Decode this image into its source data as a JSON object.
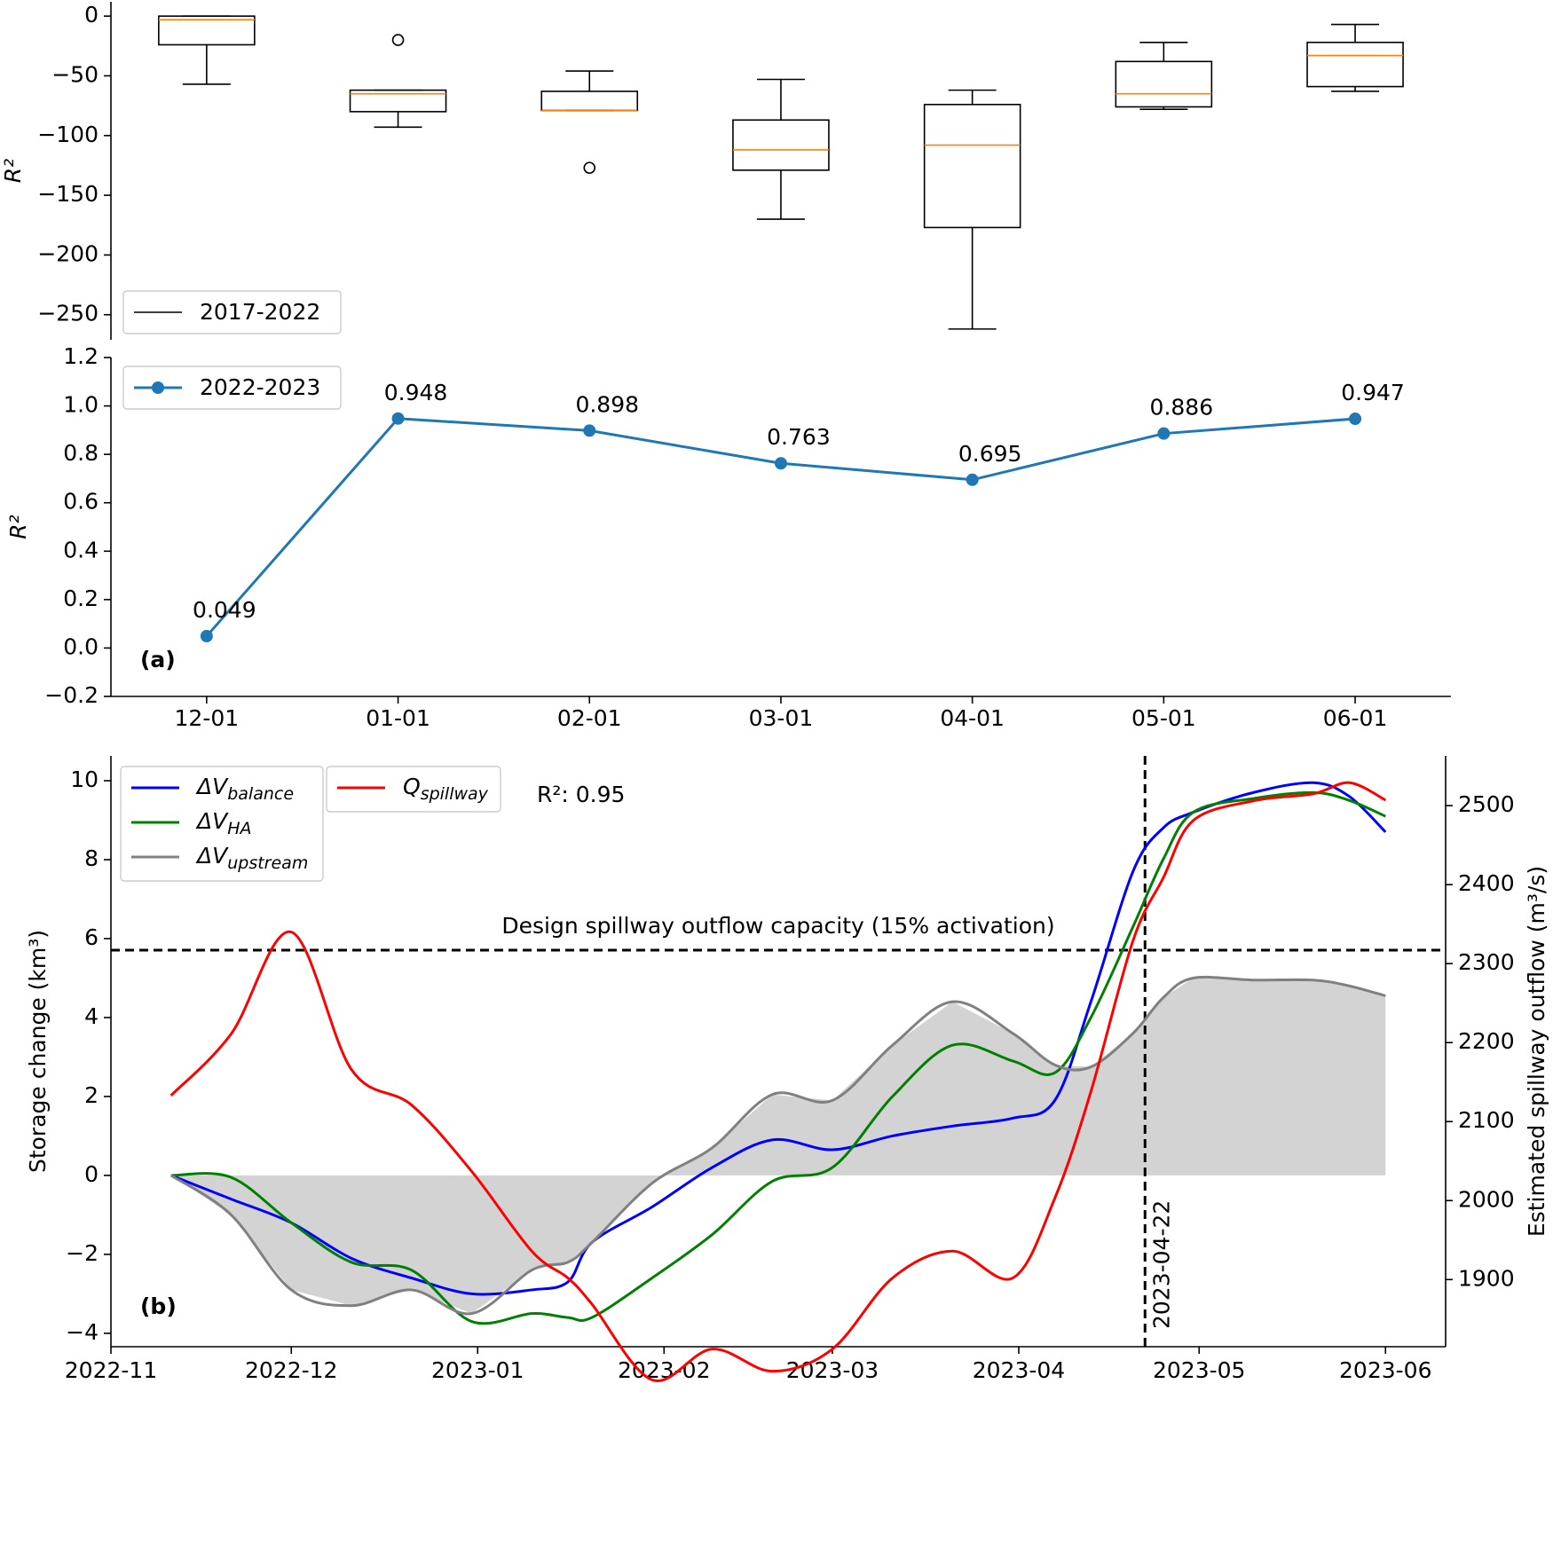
{
  "chart_data": [
    {
      "type": "box",
      "ylabel": "R²",
      "legend_label": "2017-2022",
      "legend": "lower left",
      "color": "#000000",
      "median_color": "#ff7f0e",
      "ylim": [
        -271,
        12
      ],
      "yticks": [
        0,
        {
          "value": -50,
          "label": "−50"
        },
        {
          "value": -100,
          "label": "−100"
        },
        {
          "value": -150,
          "label": "−150"
        },
        {
          "value": -200,
          "label": "−200"
        },
        {
          "value": -250,
          "label": "−250"
        }
      ],
      "boxes": [
        {
          "low": -57,
          "q1": -24,
          "median": -3,
          "q3": 0,
          "high": 0,
          "outliers": []
        },
        {
          "low": -93,
          "q1": -80,
          "median": -65,
          "q3": -62,
          "high": -62,
          "outliers": [
            -20
          ]
        },
        {
          "low": -79,
          "q1": -79,
          "median": -79,
          "q3": -63,
          "high": -46,
          "outliers": [
            -127
          ]
        },
        {
          "low": -170,
          "q1": -129,
          "median": -112,
          "q3": -87,
          "high": -53,
          "outliers": []
        },
        {
          "low": -262,
          "q1": -177,
          "median": -108,
          "q3": -74,
          "high": -62,
          "outliers": []
        },
        {
          "low": -78,
          "q1": -76,
          "median": -65,
          "q3": -38,
          "high": -22,
          "outliers": []
        },
        {
          "low": -63,
          "q1": -59,
          "median": -33,
          "q3": -22,
          "high": -7,
          "outliers": []
        }
      ]
    },
    {
      "type": "line",
      "ylabel": "R²",
      "annotation": "(a)",
      "legend": "upper left",
      "categories": [
        "12-01",
        "01-01",
        "02-01",
        "03-01",
        "04-01",
        "05-01",
        "06-01"
      ],
      "series": [
        {
          "name": "2022-2023",
          "color": "#1f77b4",
          "values": [
            0.049,
            0.948,
            0.898,
            0.763,
            0.695,
            0.886,
            0.947
          ]
        }
      ],
      "ylim": [
        -0.2,
        1.2
      ],
      "yticks": [
        {
          "value": -0.2,
          "label": "−0.2"
        },
        {
          "value": 0,
          "label": "0.0"
        },
        0.2,
        0.4,
        0.6,
        0.8,
        {
          "value": 1,
          "label": "1.0"
        },
        1.2
      ]
    },
    {
      "type": "timeseries",
      "ylabel": "Storage change (km³)",
      "y2label": "Estimated spillway outflow (m³/s)",
      "annotation": "(b)",
      "r2_text": "R²: 0.95",
      "legend": "upper left",
      "x": [
        "2022-11-11",
        "2022-11-21",
        "2022-12-01",
        "2022-12-11",
        "2022-12-21",
        "2022-12-31",
        "2023-01-10",
        "2023-01-16",
        "2023-01-20",
        "2023-01-30",
        "2023-02-09",
        "2023-02-19",
        "2023-03-01",
        "2023-03-11",
        "2023-03-21",
        "2023-03-31",
        "2023-04-07",
        "2023-04-13",
        "2023-04-20",
        "2023-04-25",
        "2023-04-30",
        "2023-05-10",
        "2023-05-20",
        "2023-05-26",
        "2023-06-01"
      ],
      "series": [
        {
          "name": "ΔVbalance",
          "color": "#0000ff",
          "axis": "y",
          "values": [
            0,
            -0.6,
            -1.2,
            -2.1,
            -2.6,
            -3.0,
            -2.9,
            -2.7,
            -1.7,
            -0.8,
            0.2,
            0.9,
            0.65,
            1.0,
            1.25,
            1.45,
            1.9,
            4.4,
            7.7,
            8.8,
            9.2,
            9.7,
            9.95,
            9.6,
            8.7
          ]
        },
        {
          "name": "ΔVHA",
          "color": "#008000",
          "axis": "y",
          "values": [
            0,
            -0.05,
            -1.2,
            -2.2,
            -2.4,
            -3.7,
            -3.5,
            -3.6,
            -3.6,
            -2.6,
            -1.5,
            -0.15,
            0.2,
            2.0,
            3.3,
            2.9,
            2.6,
            4.0,
            6.3,
            8.0,
            9.2,
            9.55,
            9.7,
            9.5,
            9.1
          ]
        },
        {
          "name": "ΔVupstream",
          "color": "#808080",
          "fill": "#d3d3d3",
          "axis": "y",
          "values": [
            0,
            -1.0,
            -2.9,
            -3.3,
            -2.9,
            -3.5,
            -2.4,
            -2.2,
            -1.7,
            -0.2,
            0.7,
            2.05,
            1.9,
            3.3,
            4.4,
            3.6,
            2.8,
            2.75,
            3.6,
            4.5,
            5.0,
            4.95,
            4.95,
            4.8,
            4.55
          ]
        },
        {
          "name": "Qspillway",
          "color": "#ff0000",
          "axis": "y2",
          "values": [
            2133,
            2211,
            2340,
            2166,
            2121,
            2037,
            1936,
            1902,
            1869,
            1773,
            1812,
            1784,
            1812,
            1902,
            1936,
            1902,
            2003,
            2138,
            2329,
            2408,
            2481,
            2506,
            2515,
            2529,
            2507
          ]
        }
      ],
      "hline": {
        "value": 2317,
        "axis": "y2",
        "label": "Design spillway outflow capacity (15% activation)"
      },
      "vline": {
        "x": "2023-04-22",
        "label": "2023-04-22"
      },
      "xlim": [
        "2022-11-01",
        "2023-06-11"
      ],
      "xticks": [
        "2022-11",
        "2022-12",
        "2023-01",
        "2023-02",
        "2023-03",
        "2023-04",
        "2023-05",
        "2023-06"
      ],
      "ylim": [
        -4.34,
        10.63
      ],
      "yticks": [
        {
          "value": -4,
          "label": "−4"
        },
        {
          "value": -2,
          "label": "−2"
        },
        0,
        2,
        4,
        6,
        8,
        10
      ],
      "y2lim": [
        1815,
        2563
      ],
      "y2ticks": [
        1900,
        2000,
        2100,
        2200,
        2300,
        2400,
        2500
      ]
    }
  ]
}
